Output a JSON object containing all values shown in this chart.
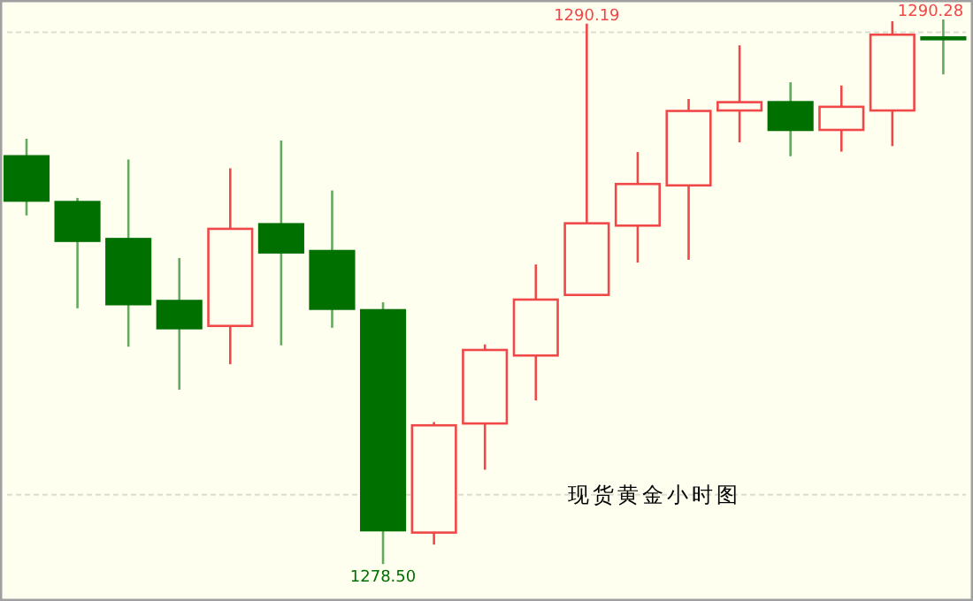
{
  "chart_data": {
    "type": "candlestick",
    "categories": [
      null,
      null,
      null,
      null,
      null,
      null,
      null,
      null,
      null,
      null,
      null,
      null,
      null,
      null,
      null,
      null,
      null,
      null,
      null
    ],
    "ohlc": [
      [
        1287.32,
        1287.7,
        1286.04,
        1286.36
      ],
      [
        1286.33,
        1286.42,
        1284.03,
        1285.49
      ],
      [
        1285.53,
        1287.25,
        1283.2,
        1284.12
      ],
      [
        1284.19,
        1285.12,
        1282.27,
        1283.6
      ],
      [
        1283.65,
        1287.06,
        1282.82,
        1285.75
      ],
      [
        1285.85,
        1287.66,
        1283.23,
        1285.24
      ],
      [
        1285.27,
        1286.58,
        1283.61,
        1284.02
      ],
      [
        1283.99,
        1284.16,
        1278.5,
        1279.23
      ],
      [
        1279.18,
        1281.57,
        1278.92,
        1281.5
      ],
      [
        1281.54,
        1283.25,
        1280.54,
        1283.13
      ],
      [
        1283.01,
        1284.98,
        1282.04,
        1284.22
      ],
      [
        1284.32,
        1290.19,
        1284.32,
        1285.87
      ],
      [
        1285.82,
        1287.41,
        1285.02,
        1286.72
      ],
      [
        1286.69,
        1288.56,
        1285.08,
        1288.3
      ],
      [
        1288.31,
        1289.72,
        1287.62,
        1288.49
      ],
      [
        1288.49,
        1288.92,
        1287.32,
        1287.89
      ],
      [
        1287.89,
        1288.85,
        1287.42,
        1288.39
      ],
      [
        1288.31,
        1290.24,
        1287.54,
        1289.95
      ],
      [
        1289.89,
        1290.28,
        1289.09,
        1289.87
      ]
    ],
    "colors": [
      "#007000",
      "#007000",
      "#007000",
      "#007000",
      "#f04848",
      "#007000",
      "#007000",
      "#007000",
      "#f04848",
      "#f04848",
      "#f04848",
      "#f04848",
      "#f04848",
      "#f04848",
      "#f04848",
      "#007000",
      "#f04848",
      "#f04848",
      "#007000"
    ],
    "value_labels": [
      null,
      null,
      null,
      null,
      null,
      null,
      null,
      "1278.50",
      null,
      null,
      null,
      "1290.19",
      null,
      null,
      null,
      null,
      null,
      null,
      "1290.28"
    ],
    "ylim": [
      1277.7,
      1290.7
    ],
    "yticks": [
      {
        "value": 1280,
        "label": null
      },
      {
        "value": 1290,
        "label": null
      }
    ],
    "grid": "y",
    "annotations": [
      "现货黄金小时图"
    ]
  }
}
